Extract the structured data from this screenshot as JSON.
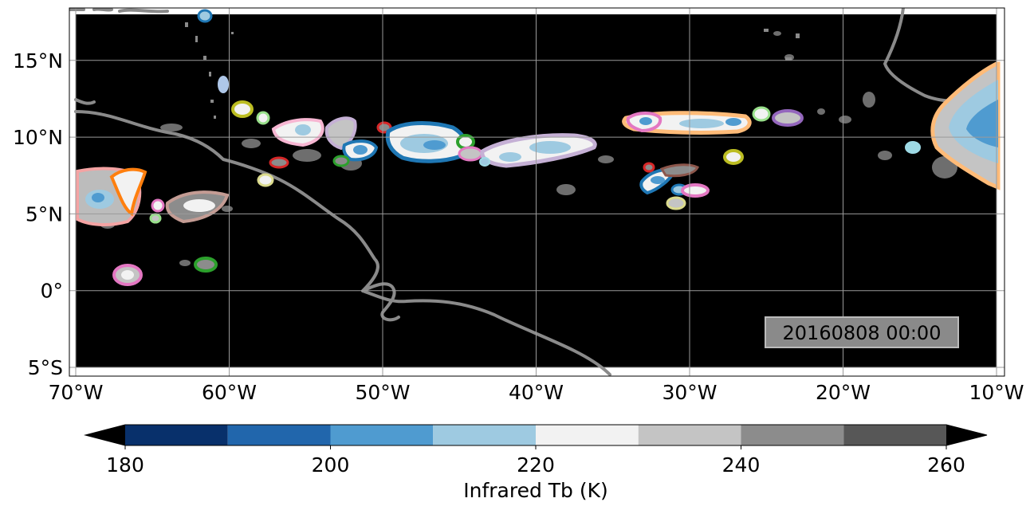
{
  "map": {
    "lon_range": [
      -70,
      -10
    ],
    "lat_range": [
      -5,
      18
    ],
    "lon_ticks": [
      {
        "value": -70,
        "label": "70°W"
      },
      {
        "value": -60,
        "label": "60°W"
      },
      {
        "value": -50,
        "label": "50°W"
      },
      {
        "value": -40,
        "label": "40°W"
      },
      {
        "value": -30,
        "label": "30°W"
      },
      {
        "value": -20,
        "label": "20°W"
      },
      {
        "value": -10,
        "label": "10°W"
      }
    ],
    "lat_ticks": [
      {
        "value": 15,
        "label": "15°N"
      },
      {
        "value": 10,
        "label": "10°N"
      },
      {
        "value": 5,
        "label": "5°N"
      },
      {
        "value": 0,
        "label": "0°"
      },
      {
        "value": -5,
        "label": "5°S"
      }
    ],
    "gridlines": true,
    "background_color": "#000000",
    "coastline_color": "#808080",
    "timestamp": "20160808 00:00"
  },
  "colorbar": {
    "label": "Infrared Tb (K)",
    "extend": "both",
    "levels": [
      180,
      190,
      200,
      210,
      220,
      230,
      240,
      250,
      260
    ],
    "colors": [
      "#08306b",
      "#2166ac",
      "#4f9bd0",
      "#9ecae1",
      "#f2f2f2",
      "#c4c4c4",
      "#8c8c8c",
      "#575757"
    ],
    "under_color": "#000000",
    "over_color": "#000000",
    "ticks": [
      {
        "value": 180,
        "label": "180"
      },
      {
        "value": 200,
        "label": "200"
      },
      {
        "value": 220,
        "label": "220"
      },
      {
        "value": 240,
        "label": "240"
      },
      {
        "value": 260,
        "label": "260"
      }
    ]
  },
  "cloud_systems": [
    {
      "lon": -68,
      "lat": 6.5,
      "outline": "#f4a3a3",
      "core": "#4f9bd0"
    },
    {
      "lon": -64,
      "lat": 5.5,
      "outline": "#c49c94",
      "core": "#c4c4c4"
    },
    {
      "lon": -57,
      "lat": 10.3,
      "outline": "#f7b6d2",
      "core": "#ffffff"
    },
    {
      "lon": -52,
      "lat": 10.2,
      "outline": "#c5b0d5",
      "core": "#f2f2f2"
    },
    {
      "lon": -46.5,
      "lat": 9.8,
      "outline": "#1f77b4",
      "core": "#4f9bd0"
    },
    {
      "lon": -40.5,
      "lat": 9.4,
      "outline": "#c5b0d5",
      "core": "#9ecae1"
    },
    {
      "lon": -30.3,
      "lat": 11.0,
      "outline": "#ffbb78",
      "core": "#9ecae1"
    },
    {
      "lon": -13.5,
      "lat": 11.0,
      "outline": "#ffbb78",
      "core": "#4f9bd0"
    }
  ]
}
